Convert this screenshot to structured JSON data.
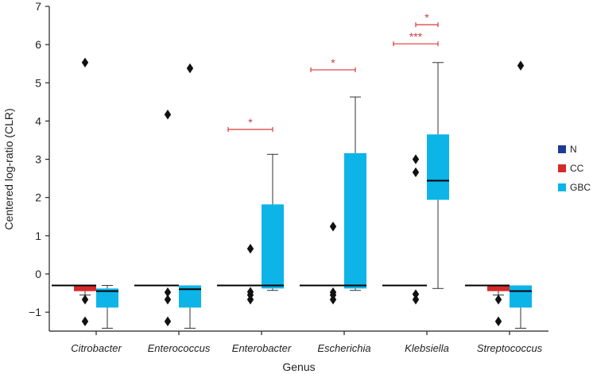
{
  "chart_data": {
    "type": "box",
    "xlabel": "Genus",
    "ylabel": "Centered log-ratio (CLR)",
    "ylim": [
      -1.5,
      7
    ],
    "yticks": [
      -1,
      0,
      1,
      2,
      3,
      4,
      5,
      6,
      7
    ],
    "ytick_labels": [
      "−1",
      "0",
      "1",
      "2",
      "3",
      "4",
      "5",
      "6",
      "7"
    ],
    "categories": [
      "Citrobacter",
      "Enterococcus",
      "Enterobacter",
      "Escherichia",
      "Klebsiella",
      "Streptococcus"
    ],
    "series": [
      {
        "name": "N",
        "color": "#1f3a93"
      },
      {
        "name": "CC",
        "color": "#d62a2a"
      },
      {
        "name": "GBC",
        "color": "#0cb4e8"
      }
    ],
    "boxes": [
      {
        "category": "Citrobacter",
        "series": "N",
        "q1": -0.3,
        "median": -0.3,
        "q3": -0.3
      },
      {
        "category": "Citrobacter",
        "series": "CC",
        "q1": -0.45,
        "median": -0.3,
        "q3": -0.3,
        "whisker_low": -0.55,
        "whisker_high": -0.3,
        "outliers": [
          -0.67,
          -1.24,
          5.53
        ]
      },
      {
        "category": "Citrobacter",
        "series": "GBC",
        "q1": -0.88,
        "median": -0.45,
        "q3": -0.38,
        "whisker_low": -1.42,
        "whisker_high": -0.3,
        "outliers": []
      },
      {
        "category": "Enterococcus",
        "series": "N",
        "q1": -0.3,
        "median": -0.3,
        "q3": -0.3
      },
      {
        "category": "Enterococcus",
        "series": "CC",
        "q1": -0.3,
        "median": -0.3,
        "q3": -0.3,
        "outliers": [
          -0.67,
          -0.48,
          -1.24,
          4.17
        ]
      },
      {
        "category": "Enterococcus",
        "series": "GBC",
        "q1": -0.88,
        "median": -0.4,
        "q3": -0.3,
        "whisker_low": -1.42,
        "whisker_high": -0.3,
        "outliers": [
          5.38
        ]
      },
      {
        "category": "Enterobacter",
        "series": "N",
        "q1": -0.3,
        "median": -0.3,
        "q3": -0.3
      },
      {
        "category": "Enterobacter",
        "series": "CC",
        "q1": -0.3,
        "median": -0.3,
        "q3": -0.3,
        "outliers": [
          -0.67,
          -0.47,
          -0.55,
          0.66
        ]
      },
      {
        "category": "Enterobacter",
        "series": "GBC",
        "q1": -0.38,
        "median": -0.3,
        "q3": 1.82,
        "whisker_low": -0.43,
        "whisker_high": 3.13,
        "outliers": []
      },
      {
        "category": "Escherichia",
        "series": "N",
        "q1": -0.3,
        "median": -0.3,
        "q3": -0.3
      },
      {
        "category": "Escherichia",
        "series": "CC",
        "q1": -0.3,
        "median": -0.3,
        "q3": -0.3,
        "outliers": [
          -0.67,
          -0.48,
          -0.55,
          1.24
        ]
      },
      {
        "category": "Escherichia",
        "series": "GBC",
        "q1": -0.38,
        "median": -0.3,
        "q3": 3.16,
        "whisker_low": -0.43,
        "whisker_high": 4.63,
        "outliers": []
      },
      {
        "category": "Klebsiella",
        "series": "N",
        "q1": -0.3,
        "median": -0.3,
        "q3": -0.3
      },
      {
        "category": "Klebsiella",
        "series": "CC",
        "q1": -0.3,
        "median": -0.3,
        "q3": -0.3,
        "outliers": [
          -0.67,
          -0.53,
          2.66,
          3.0
        ]
      },
      {
        "category": "Klebsiella",
        "series": "GBC",
        "q1": 1.94,
        "median": 2.44,
        "q3": 3.65,
        "whisker_low": -0.38,
        "whisker_high": 5.53,
        "outliers": []
      },
      {
        "category": "Streptococcus",
        "series": "N",
        "q1": -0.3,
        "median": -0.3,
        "q3": -0.3
      },
      {
        "category": "Streptococcus",
        "series": "CC",
        "q1": -0.45,
        "median": -0.3,
        "q3": -0.3,
        "whisker_low": -0.55,
        "whisker_high": -0.3,
        "outliers": [
          -0.67,
          -1.24
        ]
      },
      {
        "category": "Streptococcus",
        "series": "GBC",
        "q1": -0.88,
        "median": -0.45,
        "q3": -0.3,
        "whisker_low": -1.42,
        "whisker_high": -0.3,
        "outliers": [
          5.45
        ]
      }
    ],
    "significance": [
      {
        "category": "Enterobacter",
        "from": "N",
        "to": "GBC",
        "y": 3.78,
        "label": "*"
      },
      {
        "category": "Escherichia",
        "from": "N",
        "to": "GBC",
        "y": 5.34,
        "label": "*"
      },
      {
        "category": "Klebsiella",
        "from": "N",
        "to": "GBC",
        "y": 6.02,
        "label": "***"
      },
      {
        "category": "Klebsiella",
        "from": "CC",
        "to": "GBC",
        "y": 6.52,
        "label": "*"
      }
    ],
    "legend": {
      "position": "right"
    },
    "grid": false
  }
}
